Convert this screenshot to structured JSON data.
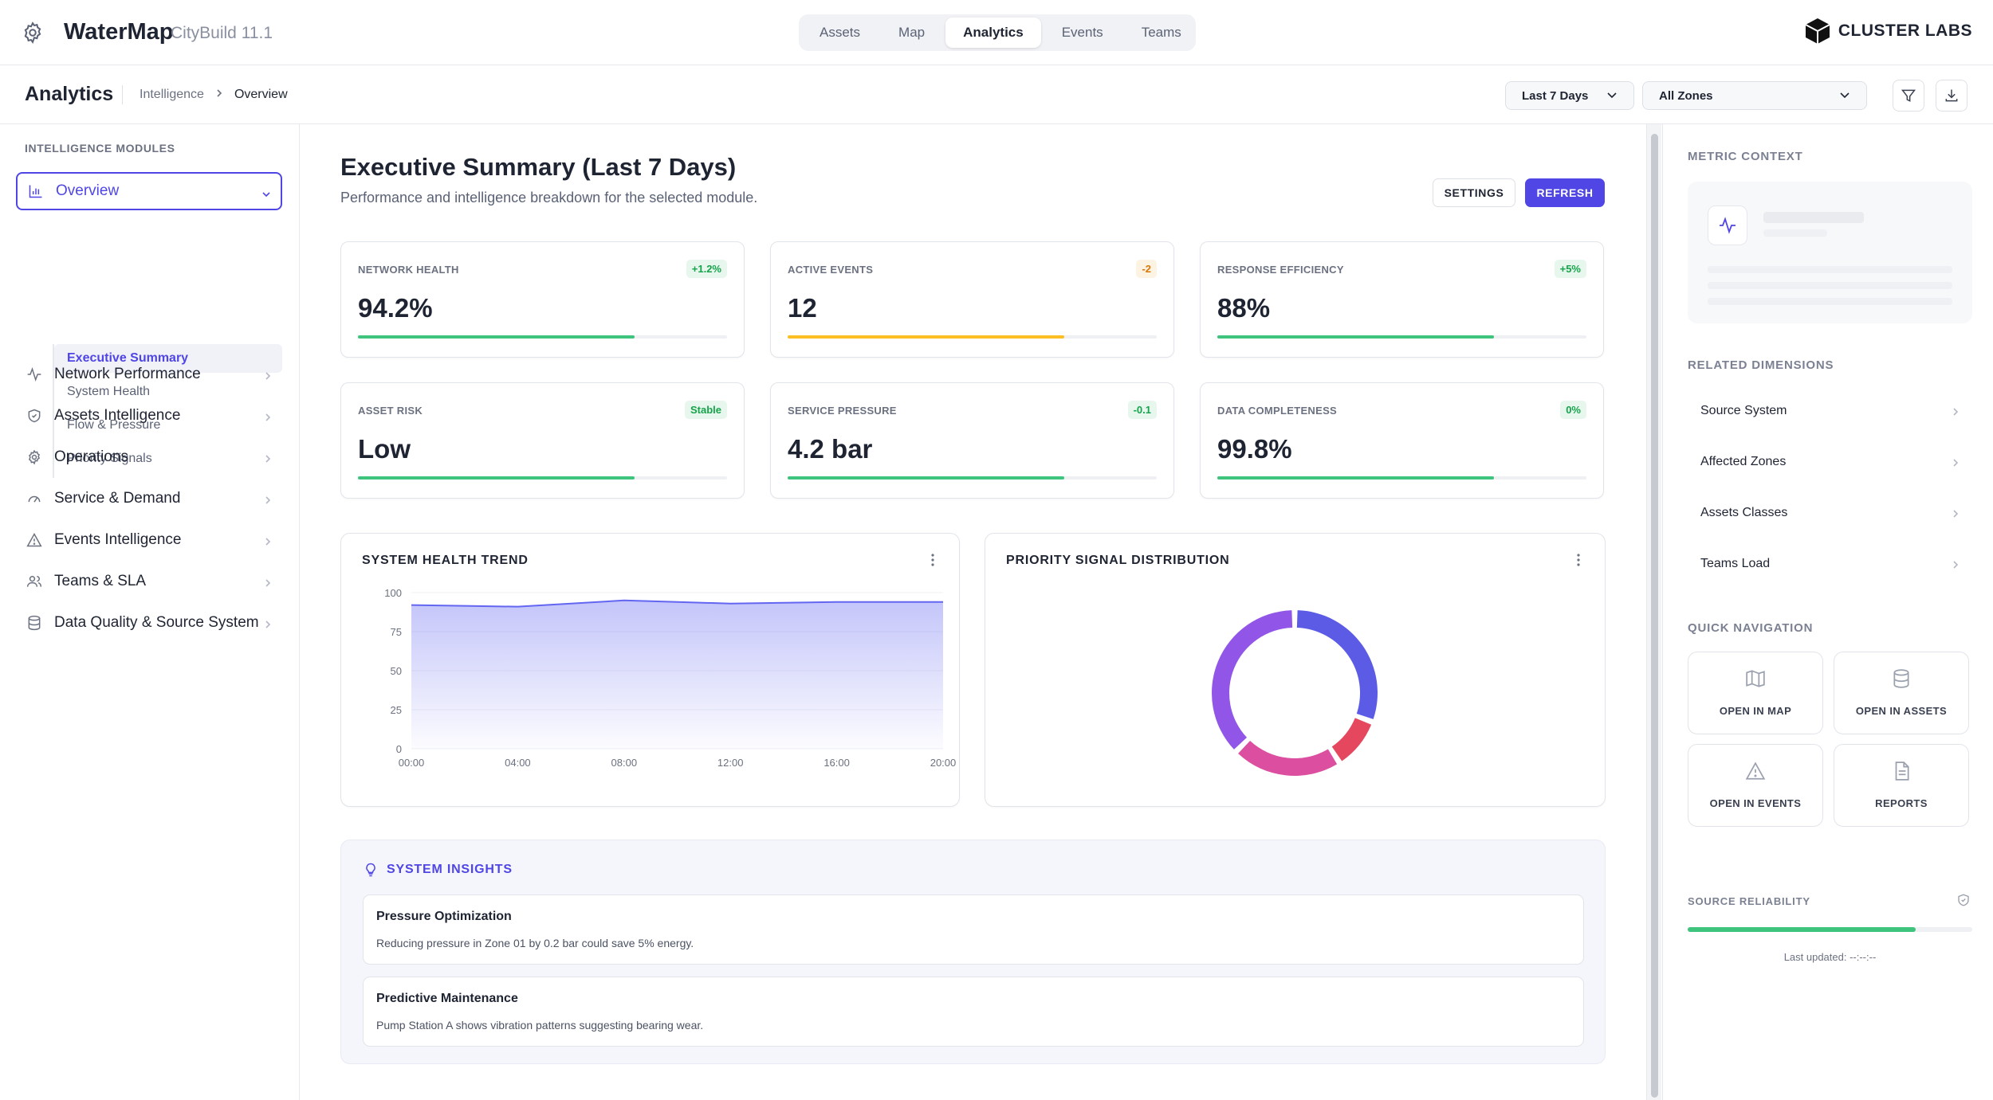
{
  "app": {
    "name": "WaterMap",
    "version": "CityBuild 11.1",
    "brand": "CLUSTER LABS"
  },
  "topnav": {
    "tabs": [
      {
        "label": "Assets",
        "active": false
      },
      {
        "label": "Map",
        "active": false
      },
      {
        "label": "Analytics",
        "active": true
      },
      {
        "label": "Events",
        "active": false
      },
      {
        "label": "Teams",
        "active": false
      }
    ]
  },
  "subheader": {
    "title": "Analytics",
    "breadcrumb": [
      "Intelligence",
      "Overview"
    ],
    "period_select": "Last 7 Days",
    "zone_select": "All Zones"
  },
  "sidebar": {
    "heading": "INTELLIGENCE MODULES",
    "items": [
      {
        "label": "Overview",
        "icon": "bar-chart-icon",
        "active": true
      },
      {
        "label": "Network Performance",
        "icon": "activity-icon"
      },
      {
        "label": "Assets Intelligence",
        "icon": "shield-icon"
      },
      {
        "label": "Operations",
        "icon": "gear-icon"
      },
      {
        "label": "Service & Demand",
        "icon": "gauge-icon"
      },
      {
        "label": "Events Intelligence",
        "icon": "warning-icon"
      },
      {
        "label": "Teams & SLA",
        "icon": "users-icon"
      },
      {
        "label": "Data Quality & Source System",
        "icon": "database-icon"
      }
    ],
    "sub_items": [
      {
        "label": "Executive Summary",
        "active": true
      },
      {
        "label": "System Health"
      },
      {
        "label": "Flow & Pressure"
      },
      {
        "label": "Priority Signals"
      }
    ]
  },
  "main": {
    "title": "Executive Summary (Last 7 Days)",
    "subtitle": "Performance and intelligence breakdown for the selected module.",
    "settings_label": "SETTINGS",
    "refresh_label": "REFRESH",
    "kpis": [
      {
        "label": "NETWORK HEALTH",
        "badge": "+1.2%",
        "value": "94.2%",
        "progress": 0.75,
        "color": "#3fc47d",
        "badge_color": "#16a34a",
        "badge_bg": "#e7f7ee"
      },
      {
        "label": "ACTIVE EVENTS",
        "badge": "-2",
        "value": "12",
        "progress": 0.75,
        "color": "#fbbf24",
        "badge_color": "#d97706",
        "badge_bg": "#fdf3e2"
      },
      {
        "label": "RESPONSE EFFICIENCY",
        "badge": "+5%",
        "value": "88%",
        "progress": 0.75,
        "color": "#3fc47d",
        "badge_color": "#16a34a",
        "badge_bg": "#e7f7ee"
      },
      {
        "label": "ASSET RISK",
        "badge": "Stable",
        "value": "Low",
        "progress": 0.75,
        "color": "#3fc47d",
        "badge_color": "#16a34a",
        "badge_bg": "#e7f7ee"
      },
      {
        "label": "SERVICE PRESSURE",
        "badge": "-0.1",
        "value": "4.2 bar",
        "progress": 0.75,
        "color": "#3fc47d",
        "badge_color": "#16a34a",
        "badge_bg": "#e7f7ee"
      },
      {
        "label": "DATA COMPLETENESS",
        "badge": "0%",
        "value": "99.8%",
        "progress": 0.75,
        "color": "#3fc47d",
        "badge_color": "#16a34a",
        "badge_bg": "#e7f7ee"
      }
    ],
    "trend_card_title": "SYSTEM HEALTH TREND",
    "distribution_card_title": "PRIORITY SIGNAL DISTRIBUTION",
    "insights": {
      "title": "SYSTEM INSIGHTS",
      "items": [
        {
          "title": "Pressure Optimization",
          "text": "Reducing pressure in Zone 01 by 0.2 bar could save 5% energy."
        },
        {
          "title": "Predictive Maintenance",
          "text": "Pump Station A shows vibration patterns suggesting bearing wear."
        }
      ]
    }
  },
  "chart_data": [
    {
      "type": "area",
      "x": [
        "00:00",
        "02:00",
        "04:00",
        "06:00",
        "08:00",
        "10:00",
        "12:00",
        "14:00",
        "16:00",
        "18:00",
        "20:00"
      ],
      "x_ticks": [
        "00:00",
        "04:00",
        "08:00",
        "12:00",
        "16:00",
        "20:00"
      ],
      "y_ticks": [
        0,
        25,
        50,
        75,
        100
      ],
      "ylim": [
        0,
        100
      ],
      "series": [
        {
          "values": [
            92,
            91.5,
            91,
            93,
            95,
            94,
            93,
            93.5,
            94,
            94,
            94
          ]
        }
      ],
      "color": "#6366f1"
    },
    {
      "type": "pie",
      "style": "donut",
      "slices": [
        {
          "value": 27,
          "color": "#5b5be6"
        },
        {
          "value": 9,
          "color": "#e5475e"
        },
        {
          "value": 19,
          "color": "#dc4fa0"
        },
        {
          "value": 33,
          "color": "#9156e8"
        }
      ]
    }
  ],
  "rpanel": {
    "metric_context_heading": "METRIC CONTEXT",
    "related_heading": "RELATED DIMENSIONS",
    "related_items": [
      "Source System",
      "Affected Zones",
      "Assets Classes",
      "Teams Load"
    ],
    "quicknav_heading": "QUICK NAVIGATION",
    "quicknav": [
      {
        "label": "OPEN IN MAP",
        "icon": "map-icon"
      },
      {
        "label": "OPEN IN ASSETS",
        "icon": "database-icon"
      },
      {
        "label": "OPEN IN EVENTS",
        "icon": "warning-icon"
      },
      {
        "label": "REPORTS",
        "icon": "document-icon"
      }
    ],
    "reliability_heading": "SOURCE RELIABILITY",
    "reliability": 0.8,
    "last_updated": "Last updated: --:--:--"
  }
}
